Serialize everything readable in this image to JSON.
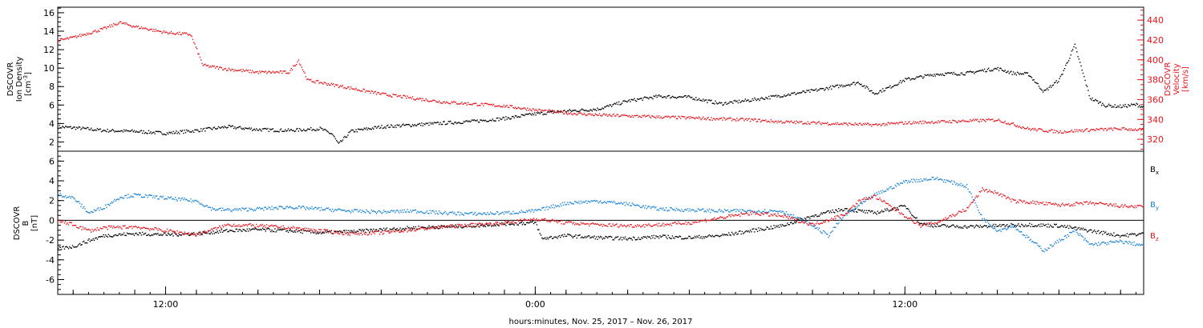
{
  "chart_data": [
    {
      "type": "scatter",
      "panel": "solar-wind-plasma",
      "x_range_hours": [
        8.5,
        43.75
      ],
      "left_axis": {
        "label_lines": [
          "DSCOVR",
          "Ion Density",
          "[cm",
          "-3",
          "]"
        ],
        "range": [
          1,
          16.6
        ],
        "ticks": [
          2,
          4,
          6,
          8,
          10,
          12,
          14,
          16
        ],
        "color": "#000000"
      },
      "right_axis": {
        "label_lines": [
          "DSCOVR",
          "Velocity",
          "[km/s]"
        ],
        "range": [
          308,
          453
        ],
        "ticks": [
          320,
          340,
          360,
          380,
          400,
          420,
          440
        ],
        "color": "#e8141c"
      },
      "series": [
        {
          "color": "#000000",
          "axis": "left",
          "points": [
            [
              8.5,
              3.7
            ],
            [
              9,
              3.6
            ],
            [
              10,
              3.3
            ],
            [
              11,
              3.2
            ],
            [
              12,
              3.0
            ],
            [
              13,
              3.3
            ],
            [
              14,
              3.7
            ],
            [
              15,
              3.4
            ],
            [
              16,
              3.3
            ],
            [
              17,
              3.5
            ],
            [
              17.4,
              2.9
            ],
            [
              17.6,
              1.8
            ],
            [
              18,
              3.2
            ],
            [
              19,
              3.7
            ],
            [
              20,
              3.9
            ],
            [
              21,
              4.1
            ],
            [
              22,
              4.3
            ],
            [
              23,
              4.6
            ],
            [
              24,
              5.1
            ],
            [
              25,
              5.4
            ],
            [
              26,
              5.6
            ],
            [
              27,
              6.5
            ],
            [
              28,
              7.0
            ],
            [
              29,
              6.9
            ],
            [
              30,
              6.2
            ],
            [
              31,
              6.6
            ],
            [
              32,
              7.1
            ],
            [
              33,
              7.6
            ],
            [
              34,
              8.2
            ],
            [
              34.5,
              8.5
            ],
            [
              35,
              7.3
            ],
            [
              35.5,
              8.0
            ],
            [
              36,
              8.8
            ],
            [
              37,
              9.4
            ],
            [
              38,
              9.5
            ],
            [
              38.5,
              9.8
            ],
            [
              39,
              10.0
            ],
            [
              39.5,
              9.5
            ],
            [
              40,
              9.4
            ],
            [
              40.5,
              7.5
            ],
            [
              41,
              8.8
            ],
            [
              41.5,
              12.5
            ],
            [
              42,
              6.8
            ],
            [
              42.5,
              6.0
            ],
            [
              43,
              5.9
            ],
            [
              43.5,
              6.1
            ],
            [
              43.75,
              5.8
            ]
          ]
        },
        {
          "color": "#e8141c",
          "axis": "right",
          "points": [
            [
              8.5,
              420
            ],
            [
              9,
              423
            ],
            [
              10,
              432
            ],
            [
              10.5,
              438
            ],
            [
              11,
              434
            ],
            [
              12,
              428
            ],
            [
              12.8,
              426
            ],
            [
              13.2,
              395
            ],
            [
              14,
              391
            ],
            [
              15,
              388
            ],
            [
              16,
              388
            ],
            [
              16.3,
              400
            ],
            [
              16.6,
              380
            ],
            [
              18,
              372
            ],
            [
              19,
              366
            ],
            [
              20,
              362
            ],
            [
              21,
              358
            ],
            [
              22,
              356
            ],
            [
              23,
              354
            ],
            [
              24,
              350
            ],
            [
              25,
              347
            ],
            [
              26,
              345
            ],
            [
              27,
              344
            ],
            [
              28,
              343
            ],
            [
              29,
              342
            ],
            [
              30,
              341
            ],
            [
              31,
              340
            ],
            [
              32,
              338
            ],
            [
              33,
              337
            ],
            [
              34,
              336
            ],
            [
              35,
              335
            ],
            [
              36,
              337
            ],
            [
              37,
              338
            ],
            [
              38,
              339
            ],
            [
              39,
              340
            ],
            [
              40,
              331
            ],
            [
              41,
              328
            ],
            [
              42,
              330
            ],
            [
              43,
              331
            ],
            [
              43.75,
              330
            ]
          ]
        }
      ]
    },
    {
      "type": "scatter",
      "panel": "interplanetary-magnetic-field",
      "x_range_hours": [
        8.5,
        43.75
      ],
      "x_tick_labels": [
        {
          "hour": 12,
          "label": "12:00"
        },
        {
          "hour": 24,
          "label": "0:00"
        },
        {
          "hour": 36,
          "label": "12:00"
        }
      ],
      "xlabel": "hours:minutes, Nov. 25, 2017 – Nov. 26, 2017",
      "y_axis": {
        "label_lines": [
          "DSCOVR",
          "B",
          "[nT]"
        ],
        "range": [
          -7.5,
          7
        ],
        "ticks": [
          -6,
          -4,
          -2,
          0,
          2,
          4,
          6
        ]
      },
      "zero_line": true,
      "legend": [
        {
          "name": "B",
          "sub": "x",
          "color": "#000000"
        },
        {
          "name": "B",
          "sub": "y",
          "color": "#1a84d8"
        },
        {
          "name": "B",
          "sub": "z",
          "color": "#e8141c"
        }
      ],
      "series": [
        {
          "name": "Bx",
          "color": "#000000",
          "points": [
            [
              8.5,
              -2.8
            ],
            [
              9,
              -2.6
            ],
            [
              9.5,
              -2.0
            ],
            [
              10,
              -1.5
            ],
            [
              11,
              -1.3
            ],
            [
              12,
              -1.4
            ],
            [
              13,
              -1.3
            ],
            [
              14,
              -1.0
            ],
            [
              15,
              -0.9
            ],
            [
              16,
              -1.0
            ],
            [
              17,
              -1.2
            ],
            [
              18,
              -1.1
            ],
            [
              19,
              -0.9
            ],
            [
              20,
              -0.7
            ],
            [
              21,
              -0.6
            ],
            [
              22,
              -0.5
            ],
            [
              23,
              -0.3
            ],
            [
              24,
              -0.2
            ],
            [
              24.2,
              -1.8
            ],
            [
              25,
              -1.5
            ],
            [
              26,
              -1.7
            ],
            [
              27,
              -1.8
            ],
            [
              28,
              -1.6
            ],
            [
              29,
              -1.7
            ],
            [
              30,
              -1.5
            ],
            [
              31,
              -1.0
            ],
            [
              32,
              -0.5
            ],
            [
              33,
              0.5
            ],
            [
              34,
              1.2
            ],
            [
              35,
              0.8
            ],
            [
              36,
              1.5
            ],
            [
              36.5,
              -0.3
            ],
            [
              37,
              -0.5
            ],
            [
              38,
              -0.6
            ],
            [
              39,
              -0.5
            ],
            [
              40,
              -0.4
            ],
            [
              41,
              -0.5
            ],
            [
              42,
              -1.0
            ],
            [
              43,
              -1.5
            ],
            [
              43.75,
              -1.3
            ]
          ]
        },
        {
          "name": "By",
          "color": "#1a84d8",
          "points": [
            [
              8.5,
              2.7
            ],
            [
              9,
              2.3
            ],
            [
              9.5,
              0.8
            ],
            [
              10,
              1.4
            ],
            [
              10.5,
              2.4
            ],
            [
              11,
              2.6
            ],
            [
              12,
              2.3
            ],
            [
              13,
              2.0
            ],
            [
              13.5,
              1.2
            ],
            [
              14,
              1.1
            ],
            [
              15,
              1.2
            ],
            [
              16,
              1.4
            ],
            [
              17,
              1.2
            ],
            [
              18,
              1.0
            ],
            [
              19,
              0.9
            ],
            [
              20,
              1.0
            ],
            [
              21,
              0.8
            ],
            [
              22,
              0.7
            ],
            [
              23,
              0.8
            ],
            [
              24,
              1.0
            ],
            [
              25,
              1.8
            ],
            [
              26,
              2.0
            ],
            [
              27,
              1.7
            ],
            [
              28,
              1.2
            ],
            [
              29,
              1.1
            ],
            [
              30,
              1.0
            ],
            [
              31,
              1.0
            ],
            [
              32,
              1.0
            ],
            [
              33,
              -0.5
            ],
            [
              33.5,
              -1.5
            ],
            [
              34,
              0.5
            ],
            [
              35,
              2.6
            ],
            [
              36,
              4.0
            ],
            [
              37,
              4.3
            ],
            [
              38,
              3.5
            ],
            [
              38.5,
              0.3
            ],
            [
              39,
              -1.0
            ],
            [
              39.5,
              -0.5
            ],
            [
              40,
              -1.8
            ],
            [
              40.5,
              -3.0
            ],
            [
              41,
              -2.0
            ],
            [
              41.5,
              -1.0
            ],
            [
              42,
              -2.4
            ],
            [
              43,
              -2.1
            ],
            [
              43.75,
              -2.5
            ]
          ]
        },
        {
          "name": "Bz",
          "color": "#e8141c",
          "points": [
            [
              8.5,
              0.0
            ],
            [
              9,
              -0.4
            ],
            [
              9.5,
              -1.0
            ],
            [
              10,
              -0.7
            ],
            [
              11,
              -0.6
            ],
            [
              12,
              -1.0
            ],
            [
              13,
              -1.4
            ],
            [
              14,
              -0.4
            ],
            [
              15,
              -0.5
            ],
            [
              16,
              -0.7
            ],
            [
              17,
              -1.0
            ],
            [
              18,
              -1.3
            ],
            [
              19,
              -1.2
            ],
            [
              20,
              -0.9
            ],
            [
              21,
              -0.6
            ],
            [
              22,
              -0.4
            ],
            [
              23,
              -0.2
            ],
            [
              24,
              0.2
            ],
            [
              25,
              -0.2
            ],
            [
              26,
              -0.4
            ],
            [
              27,
              -0.5
            ],
            [
              28,
              -0.4
            ],
            [
              29,
              -0.2
            ],
            [
              30,
              0.3
            ],
            [
              31,
              0.8
            ],
            [
              32,
              0.5
            ],
            [
              33,
              -0.4
            ],
            [
              34,
              0.6
            ],
            [
              34.5,
              2.0
            ],
            [
              35,
              2.5
            ],
            [
              36,
              0.5
            ],
            [
              36.5,
              -0.5
            ],
            [
              37,
              -0.2
            ],
            [
              38,
              1.2
            ],
            [
              38.5,
              3.2
            ],
            [
              39,
              2.8
            ],
            [
              39.5,
              2.0
            ],
            [
              40,
              1.9
            ],
            [
              41,
              1.6
            ],
            [
              42,
              1.8
            ],
            [
              43,
              1.5
            ],
            [
              43.75,
              1.4
            ]
          ]
        }
      ]
    }
  ]
}
